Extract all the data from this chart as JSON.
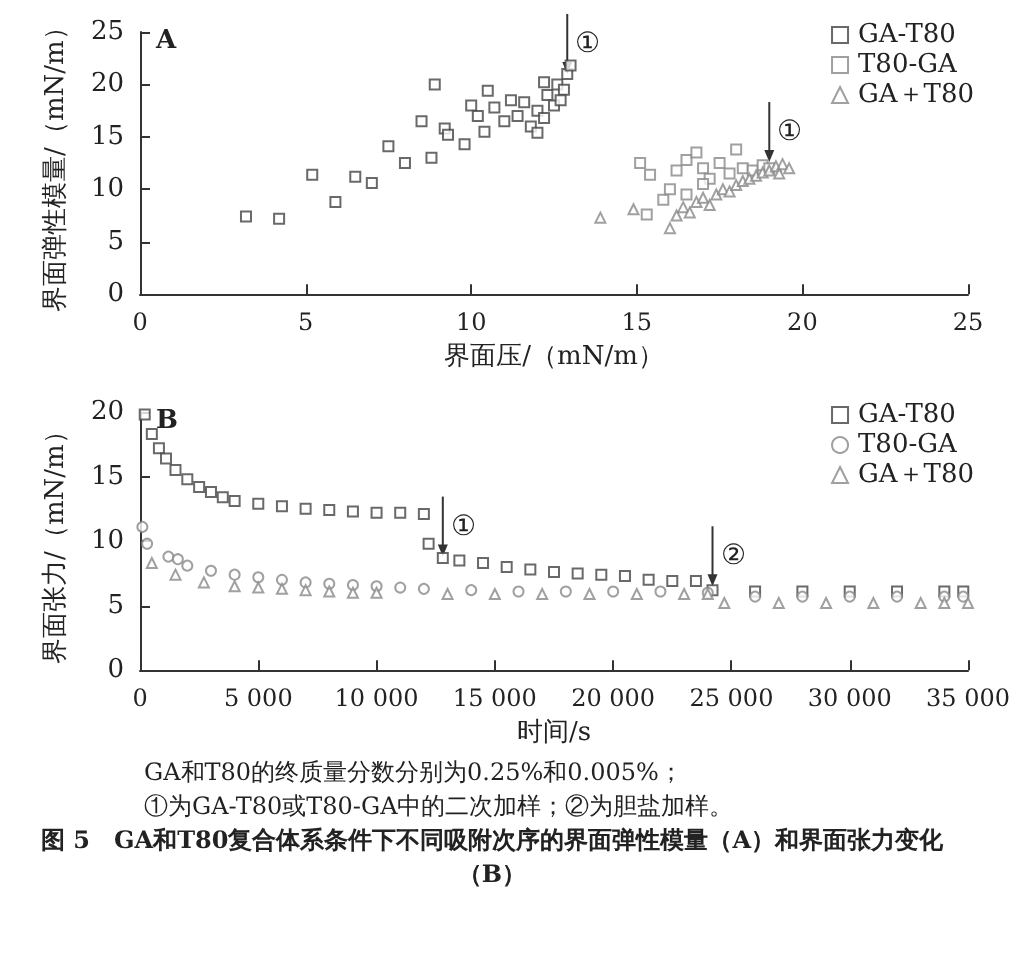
{
  "chart_data": [
    {
      "type": "scatter",
      "xlabel": "界面压/（mN/m）",
      "ylabel": "界面弹性模量/（mN/m）",
      "xlim": [
        0,
        25
      ],
      "ylim": [
        0,
        25
      ],
      "xticks": [
        0,
        5,
        10,
        15,
        20,
        25
      ],
      "yticks": [
        0,
        5,
        10,
        15,
        20,
        25
      ],
      "grid": false,
      "legend": "top right",
      "annotations": [
        "A",
        {
          "text": "①",
          "x": 12.9,
          "y": 21.0
        },
        {
          "text": "①",
          "x": 19,
          "y": 12.6
        }
      ],
      "series": [
        {
          "name": "GA-T80",
          "color": "#444444",
          "marker": "square",
          "x": [
            3.2,
            4.2,
            5.2,
            5.9,
            6.5,
            7.0,
            7.5,
            8.0,
            8.5,
            8.8,
            8.9,
            9.2,
            9.3,
            9.8,
            10.0,
            10.2,
            10.4,
            10.5,
            10.7,
            11.0,
            11.2,
            11.4,
            11.6,
            11.8,
            12.0,
            12.0,
            12.2,
            12.3,
            12.5,
            12.6,
            12.8,
            12.9,
            13.0,
            12.7,
            12.2
          ],
          "values": [
            7.4,
            7.2,
            11.4,
            8.8,
            11.2,
            10.6,
            14.1,
            12.5,
            16.5,
            13.0,
            20.0,
            15.8,
            15.2,
            14.3,
            18.0,
            17.0,
            15.5,
            19.4,
            17.8,
            16.5,
            18.5,
            17.0,
            18.3,
            16.0,
            15.4,
            17.5,
            16.8,
            19.0,
            18.0,
            20.0,
            19.5,
            21.0,
            21.8,
            18.5,
            20.2
          ]
        },
        {
          "name": "T80-GA",
          "color": "#888888",
          "marker": "square",
          "x": [
            15.1,
            15.4,
            15.3,
            15.8,
            16.0,
            16.2,
            16.5,
            16.8,
            17.0,
            17.2,
            17.5,
            17.8,
            18.0,
            18.2,
            18.5,
            18.8,
            19.0,
            16.5,
            17.0
          ],
          "values": [
            12.5,
            11.4,
            7.6,
            9.0,
            10.0,
            11.8,
            12.8,
            13.5,
            12.0,
            11.0,
            12.5,
            11.5,
            13.8,
            12.0,
            11.8,
            12.3,
            12.0,
            9.5,
            10.5
          ]
        },
        {
          "name": "GA＋T80",
          "color": "#888888",
          "marker": "triangle",
          "x": [
            13.9,
            14.9,
            16.0,
            16.2,
            16.4,
            16.6,
            16.8,
            17.0,
            17.2,
            17.4,
            17.6,
            17.8,
            18.0,
            18.2,
            18.4,
            18.6,
            18.8,
            19.0,
            19.2,
            19.4,
            19.6,
            19.3
          ],
          "values": [
            7.3,
            8.1,
            6.3,
            7.5,
            8.3,
            7.8,
            8.8,
            9.2,
            8.5,
            9.5,
            10.0,
            9.8,
            10.4,
            10.8,
            11.0,
            11.3,
            11.6,
            11.8,
            12.2,
            12.4,
            12.0,
            11.5
          ]
        }
      ]
    },
    {
      "type": "scatter",
      "xlabel": "时间/s",
      "ylabel": "界面张力/（mN/m）",
      "xlim": [
        0,
        35000
      ],
      "ylim": [
        0,
        20
      ],
      "yticks": [
        0,
        5,
        10,
        15,
        20
      ],
      "grid": false,
      "legend": "top right",
      "xticks": [
        0,
        {
          "value": 5000,
          "label": "5 000"
        },
        {
          "value": 10000,
          "label": "10 000"
        },
        {
          "value": 15000,
          "label": "15 000"
        },
        {
          "value": 20000,
          "label": "20 000"
        },
        {
          "value": 25000,
          "label": "25 000"
        },
        {
          "value": 30000,
          "label": "30 000"
        },
        {
          "value": 35000,
          "label": "35 000"
        }
      ],
      "annotations": [
        "B",
        {
          "text": "①",
          "x": 12800,
          "y": 8.8
        },
        {
          "text": "②",
          "x": 24200,
          "y": 6.5
        },
        "GA和T80的终质量分数分别为0.25%和0.005%；",
        "①为GA-T80或T80-GA中的二次加样；②为胆盐加样。",
        "图 5　GA和T80复合体系条件下不同吸附次序的界面弹性模量（A）和界面张力变化（B）"
      ],
      "series": [
        {
          "name": "GA-T80",
          "color": "#444444",
          "marker": "square",
          "x": [
            200,
            500,
            800,
            1100,
            1500,
            2000,
            2500,
            3000,
            3500,
            4000,
            5000,
            6000,
            7000,
            8000,
            9000,
            10000,
            11000,
            12000,
            12200,
            12800,
            13500,
            14500,
            15500,
            16500,
            17500,
            18500,
            19500,
            20500,
            21500,
            22500,
            23500,
            24200,
            26000,
            28000,
            30000,
            32000,
            34000,
            34800
          ],
          "values": [
            19.8,
            18.3,
            17.2,
            16.4,
            15.5,
            14.8,
            14.2,
            13.8,
            13.4,
            13.1,
            12.9,
            12.7,
            12.5,
            12.4,
            12.3,
            12.2,
            12.2,
            12.1,
            9.8,
            8.7,
            8.5,
            8.3,
            8.0,
            7.8,
            7.6,
            7.5,
            7.4,
            7.3,
            7.0,
            6.9,
            6.9,
            6.2,
            6.1,
            6.1,
            6.1,
            6.1,
            6.1,
            6.1
          ]
        },
        {
          "name": "T80-GA",
          "color": "#888888",
          "marker": "circle",
          "x": [
            100,
            300,
            1200,
            1600,
            2000,
            3000,
            4000,
            5000,
            6000,
            7000,
            8000,
            9000,
            10000,
            11000,
            12000,
            14000,
            16000,
            18000,
            20000,
            22000,
            24000,
            26000,
            28000,
            30000,
            32000,
            34000,
            34800
          ],
          "values": [
            11.1,
            9.8,
            8.8,
            8.6,
            8.1,
            7.7,
            7.4,
            7.2,
            7.0,
            6.8,
            6.7,
            6.6,
            6.5,
            6.4,
            6.3,
            6.2,
            6.1,
            6.1,
            6.1,
            6.1,
            6.0,
            5.7,
            5.7,
            5.7,
            5.7,
            5.7,
            5.7
          ]
        },
        {
          "name": "GA＋T80",
          "color": "#888888",
          "marker": "triangle",
          "x": [
            500,
            1500,
            2700,
            4000,
            5000,
            6000,
            7000,
            8000,
            9000,
            10000,
            13000,
            15000,
            17000,
            19000,
            21000,
            23000,
            24000,
            24700,
            27000,
            29000,
            31000,
            33000,
            34000,
            35000
          ],
          "values": [
            8.3,
            7.4,
            6.8,
            6.5,
            6.4,
            6.3,
            6.2,
            6.1,
            6.0,
            6.0,
            5.9,
            5.9,
            5.9,
            5.9,
            5.9,
            5.9,
            5.9,
            5.2,
            5.2,
            5.2,
            5.2,
            5.2,
            5.2,
            5.2
          ]
        }
      ]
    }
  ]
}
